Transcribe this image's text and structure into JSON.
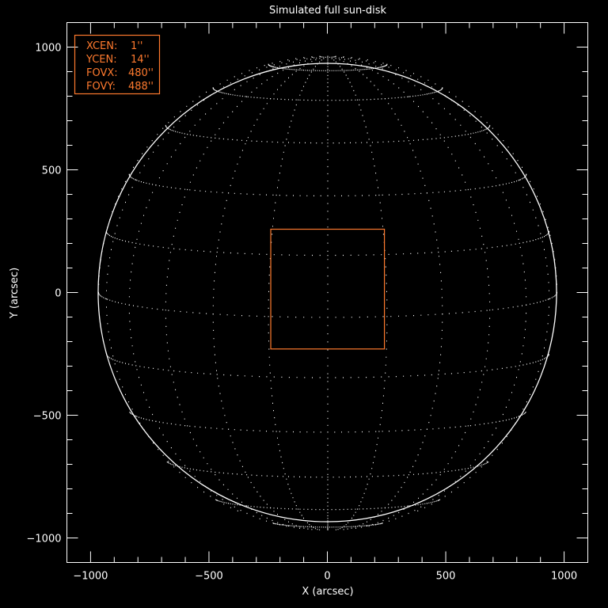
{
  "chart_data": {
    "type": "scatter",
    "title": "Simulated full sun-disk",
    "xlabel": "X (arcsec)",
    "ylabel": "Y (arcsec)",
    "xlim": [
      -1100,
      1100
    ],
    "ylim": [
      -1100,
      1100
    ],
    "xticks": [
      -1000,
      -500,
      0,
      500,
      1000
    ],
    "yticks": [
      -1000,
      -500,
      0,
      500,
      1000
    ],
    "minor_tick_step": 100,
    "grid": false,
    "solar_disk": {
      "center": [
        0,
        0
      ],
      "radius_arcsec": 968,
      "grid_spacing_deg": 15,
      "b0_deg": 6,
      "style": "dotted",
      "color": "#ffffff"
    },
    "fov_box": {
      "xcen": 1,
      "ycen": 14,
      "fovx": 480,
      "fovy": 488,
      "color": "#ff7a2e"
    },
    "legend": {
      "placement": "top-left",
      "color": "#ff7a2e",
      "entries": [
        {
          "label": "XCEN:",
          "value": "1''"
        },
        {
          "label": "YCEN:",
          "value": "14''"
        },
        {
          "label": "FOVX:",
          "value": "480''"
        },
        {
          "label": "FOVY:",
          "value": "488''"
        }
      ]
    }
  }
}
